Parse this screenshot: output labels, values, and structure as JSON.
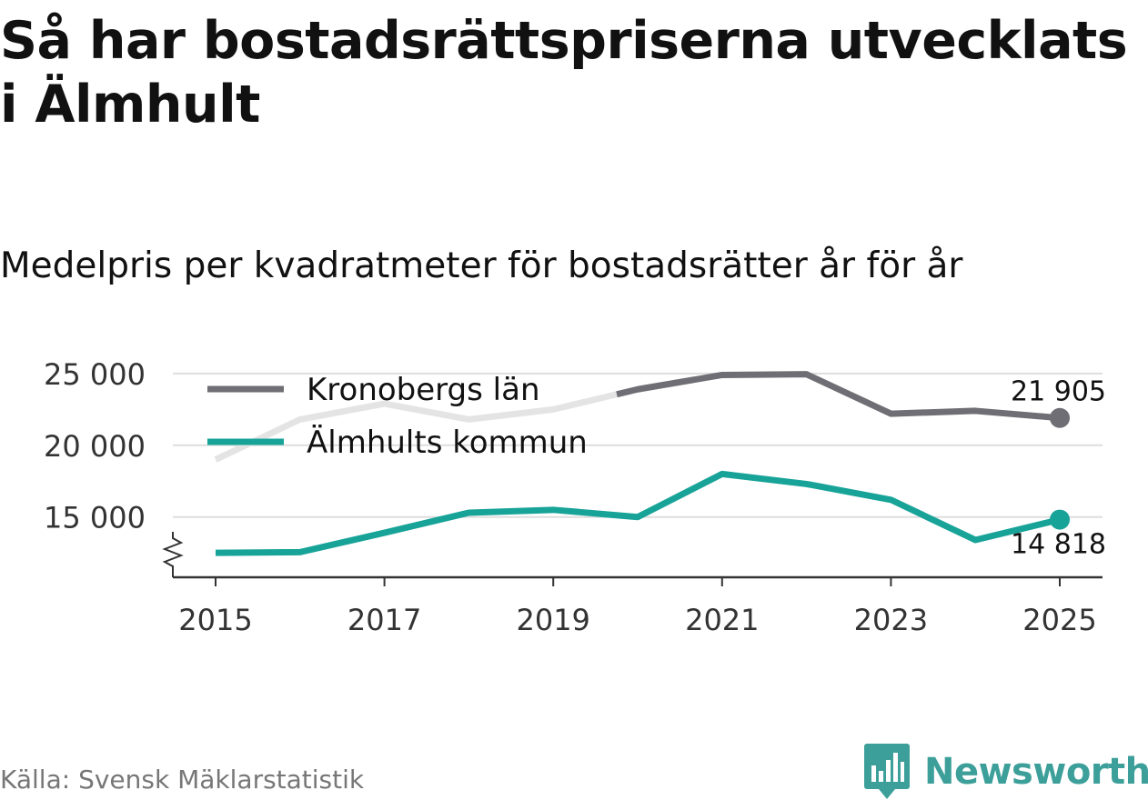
{
  "title": "Så har bostadsrättspriserna utvecklats i Älmhult",
  "subtitle": "Medelpris per kvadratmeter för bostadsrätter år för år",
  "source": "Källa: Svensk Mäklarstatistik",
  "brand": "Newsworthy",
  "colors": {
    "kronoberg": "#6e6e74",
    "kronoberg_faded": "#e4e4e4",
    "almhult": "#17a398",
    "gridline": "#dedede",
    "axis": "#333333",
    "brand": "#3d9f9a"
  },
  "chart_data": {
    "type": "line",
    "title": "Medelpris per kvadratmeter för bostadsrätter år för år",
    "xlabel": "",
    "ylabel": "",
    "x": [
      2015,
      2016,
      2017,
      2018,
      2019,
      2020,
      2021,
      2022,
      2023,
      2024,
      2025
    ],
    "xticks": [
      "2015",
      "2017",
      "2019",
      "2021",
      "2023",
      "2025"
    ],
    "yticks": [
      15000,
      20000,
      25000
    ],
    "ytick_labels": [
      "15 000",
      "20 000",
      "25 000"
    ],
    "ylim": [
      10800,
      25500
    ],
    "axis_break": true,
    "grid": true,
    "legend_position": "top-left",
    "series": [
      {
        "name": "Kronobergs län",
        "values": [
          19000,
          21800,
          22900,
          21800,
          22500,
          23900,
          24900,
          24950,
          22200,
          22400,
          21905
        ],
        "end_label": "21 905"
      },
      {
        "name": "Älmhults kommun",
        "values": [
          12500,
          12550,
          13900,
          15300,
          15500,
          15000,
          18000,
          17300,
          16200,
          13400,
          14818
        ],
        "end_label": "14 818"
      }
    ]
  }
}
